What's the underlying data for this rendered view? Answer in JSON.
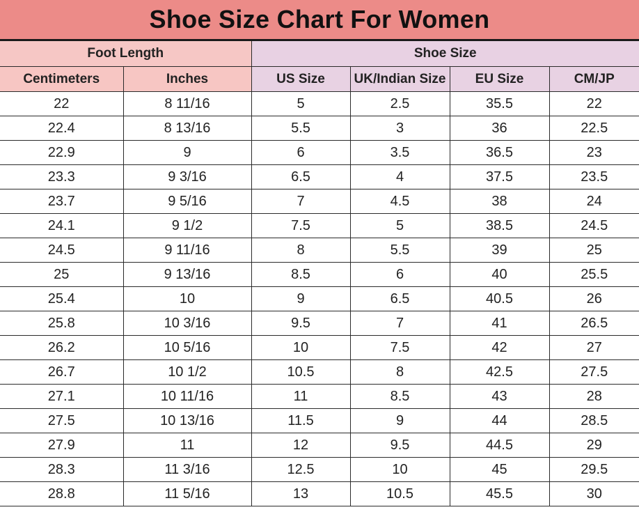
{
  "title": "Shoe Size Chart For Women",
  "groups": {
    "foot_length": "Foot Length",
    "shoe_size": "Shoe Size"
  },
  "columns": [
    "Centimeters",
    "Inches",
    "US Size",
    "UK/Indian Size",
    "EU Size",
    "CM/JP"
  ],
  "rows": [
    [
      "22",
      "8 11/16",
      "5",
      "2.5",
      "35.5",
      "22"
    ],
    [
      "22.4",
      "8 13/16",
      "5.5",
      "3",
      "36",
      "22.5"
    ],
    [
      "22.9",
      "9",
      "6",
      "3.5",
      "36.5",
      "23"
    ],
    [
      "23.3",
      "9 3/16",
      "6.5",
      "4",
      "37.5",
      "23.5"
    ],
    [
      "23.7",
      "9 5/16",
      "7",
      "4.5",
      "38",
      "24"
    ],
    [
      "24.1",
      "9 1/2",
      "7.5",
      "5",
      "38.5",
      "24.5"
    ],
    [
      "24.5",
      "9 11/16",
      "8",
      "5.5",
      "39",
      "25"
    ],
    [
      "25",
      "9 13/16",
      "8.5",
      "6",
      "40",
      "25.5"
    ],
    [
      "25.4",
      "10",
      "9",
      "6.5",
      "40.5",
      "26"
    ],
    [
      "25.8",
      "10 3/16",
      "9.5",
      "7",
      "41",
      "26.5"
    ],
    [
      "26.2",
      "10 5/16",
      "10",
      "7.5",
      "42",
      "27"
    ],
    [
      "26.7",
      "10 1/2",
      "10.5",
      "8",
      "42.5",
      "27.5"
    ],
    [
      "27.1",
      "10 11/16",
      "11",
      "8.5",
      "43",
      "28"
    ],
    [
      "27.5",
      "10 13/16",
      "11.5",
      "9",
      "44",
      "28.5"
    ],
    [
      "27.9",
      "11",
      "12",
      "9.5",
      "44.5",
      "29"
    ],
    [
      "28.3",
      "11 3/16",
      "12.5",
      "10",
      "45",
      "29.5"
    ],
    [
      "28.8",
      "11 5/16",
      "13",
      "10.5",
      "45.5",
      "30"
    ]
  ],
  "colors": {
    "title_bg": "#ec8b88",
    "foot_length_header_bg": "#f6c7c5",
    "shoe_size_header_bg": "#e8d1e3",
    "grid_line": "#2a2a2a"
  }
}
